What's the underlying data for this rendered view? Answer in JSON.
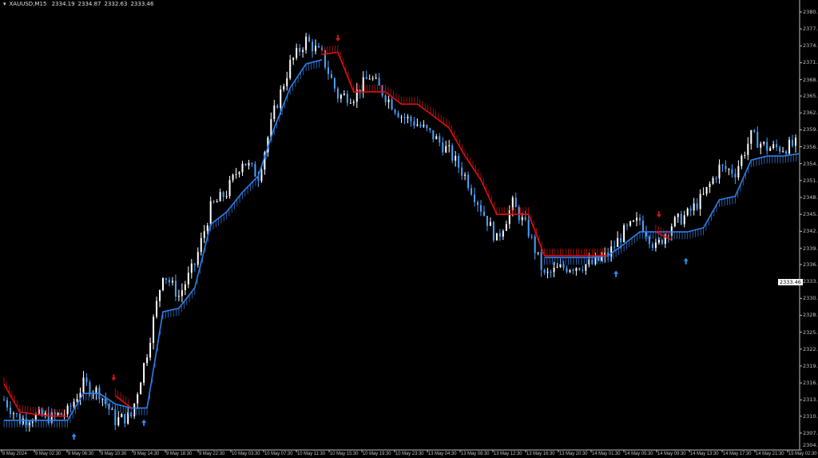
{
  "header": {
    "symbol": "XAUUSD,M15",
    "open": "2334.19",
    "high": "2334.87",
    "low": "2332.63",
    "close": "2333.46"
  },
  "current_price": "2333.46",
  "colors": {
    "background": "#000000",
    "bull": "#ffffff",
    "bear": "#4aa3ff",
    "support": "#2f7fe8",
    "resistance": "#e01010",
    "buy_arrow": "#2f8fff",
    "sell_arrow": "#e01010"
  },
  "chart_data": {
    "type": "candlestick",
    "ylim": [
      2304.9,
      2380.0
    ],
    "y_ticks": [
      "2380.0",
      "2377.1",
      "2374.2",
      "2371.3",
      "2368.4",
      "2365.6",
      "2362.7",
      "2359.8",
      "2356.9",
      "2354.0",
      "2351.1",
      "2348.2",
      "2345.3",
      "2342.4",
      "2339.5",
      "2336.7",
      "2333.8",
      "2330.9",
      "2328.0",
      "2325.1",
      "2322.2",
      "2319.3",
      "2316.4",
      "2313.5",
      "2310.7",
      "2307.8",
      "2304.9"
    ],
    "x_ticks": [
      "8 May 2024",
      "9 May 02:30",
      "9 May 06:30",
      "9 May 10:30",
      "9 May 14:30",
      "9 May 18:30",
      "9 May 22:30",
      "10 May 03:30",
      "10 May 07:30",
      "10 May 11:30",
      "10 May 15:30",
      "10 May 19:30",
      "10 May 23:30",
      "13 May 04:30",
      "13 May 08:30",
      "13 May 12:30",
      "13 May 16:30",
      "13 May 20:30",
      "14 May 01:30",
      "14 May 05:30",
      "14 May 09:30",
      "14 May 13:30",
      "14 May 17:30",
      "14 May 21:30",
      "15 May 02:30"
    ],
    "close": [
      2313.5,
      2310.0,
      2310.7,
      2310.5,
      2311.4,
      2316.2,
      2314.8,
      2310.0,
      2310.7,
      2321.7,
      2335.4,
      2331.3,
      2336.8,
      2346.4,
      2349.1,
      2354.6,
      2351.9,
      2362.9,
      2371.1,
      2375.2,
      2372.5,
      2365.6,
      2365.6,
      2369.0,
      2365.6,
      2362.2,
      2360.8,
      2358.7,
      2356.0,
      2351.9,
      2346.4,
      2340.9,
      2347.1,
      2342.3,
      2334.7,
      2336.1,
      2336.5,
      2336.8,
      2338.4,
      2342.3,
      2344.3,
      2339.5,
      2343.6,
      2345.3,
      2348.4,
      2353.3,
      2352.6,
      2358.7,
      2356.7,
      2356.7,
      2357.4
    ],
    "support": [
      2310.0,
      2310.0,
      2310.0,
      2310.0,
      2310.0,
      2314.6,
      2314.6,
      2312.8,
      2312.1,
      2312.1,
      2328.6,
      2329.2,
      2332.7,
      2343.6,
      2345.7,
      2349.1,
      2351.9,
      2360.1,
      2367.0,
      2371.1,
      2371.8,
      null,
      null,
      null,
      null,
      null,
      null,
      null,
      null,
      null,
      null,
      null,
      null,
      null,
      2337.9,
      2337.9,
      2337.9,
      2337.9,
      2338.2,
      2340.2,
      2342.3,
      2342.3,
      2342.3,
      2342.3,
      2343.0,
      2347.8,
      2348.4,
      2354.6,
      2355.3,
      2355.3,
      2355.7
    ],
    "resistance": [
      2316.2,
      2311.4,
      2311.0,
      2310.7,
      2310.7,
      null,
      null,
      2314.2,
      2312.1,
      null,
      null,
      null,
      null,
      null,
      null,
      null,
      null,
      null,
      null,
      null,
      2372.7,
      2373.1,
      2366.3,
      2366.3,
      2366.3,
      2364.2,
      2364.2,
      2362.2,
      2360.1,
      2355.3,
      2351.2,
      2345.3,
      2345.3,
      2345.3,
      2338.2,
      2338.2,
      2338.2,
      2338.2,
      2338.2,
      null,
      null,
      2342.3,
      2340.9,
      null,
      null,
      null,
      null,
      null,
      null,
      null,
      null
    ],
    "signals": [
      {
        "type": "buy",
        "index": 4.4,
        "price": 2307.2
      },
      {
        "type": "sell",
        "index": 6.9,
        "price": 2317.3
      },
      {
        "type": "buy",
        "index": 8.8,
        "price": 2309.6
      },
      {
        "type": "sell",
        "index": 21,
        "price": 2375.5
      },
      {
        "type": "buy",
        "index": 38.5,
        "price": 2335.1
      },
      {
        "type": "sell",
        "index": 41.2,
        "price": 2345.3
      },
      {
        "type": "buy",
        "index": 42.9,
        "price": 2337.3
      }
    ]
  }
}
